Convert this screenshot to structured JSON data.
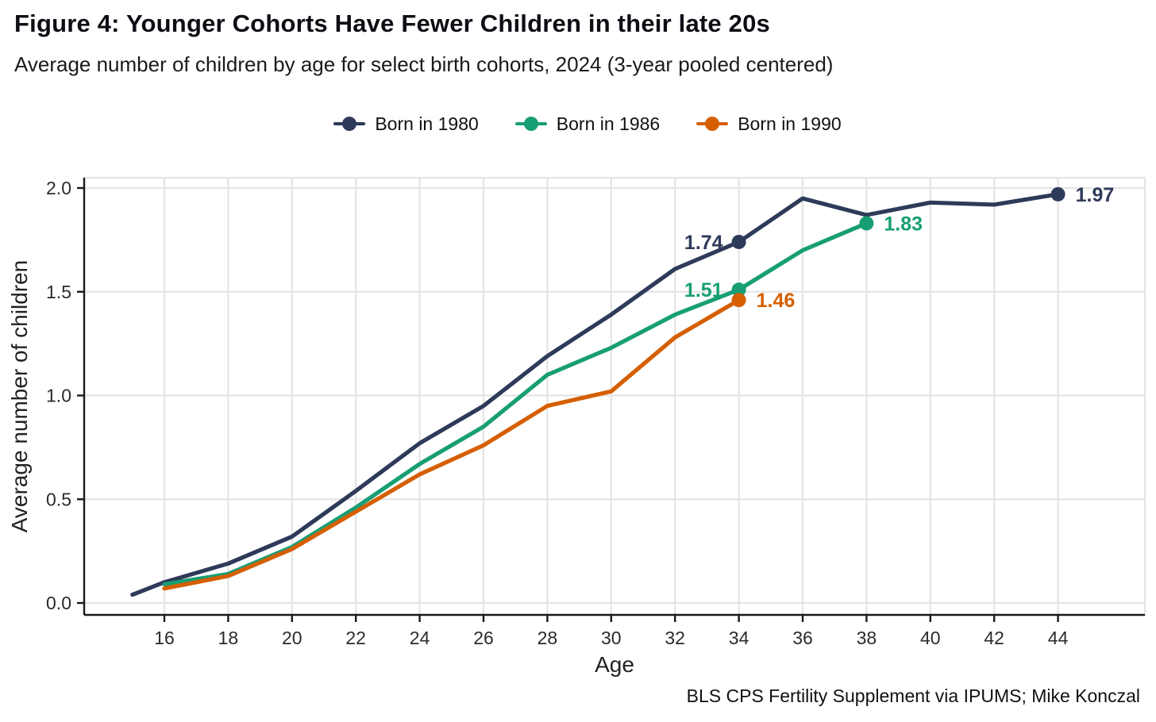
{
  "header": {
    "title": "Figure 4: Younger Cohorts Have Fewer Children in their late 20s",
    "subtitle": "Average number of children by age for select birth cohorts, 2024 (3-year pooled centered)"
  },
  "legend": [
    {
      "label": "Born in 1980",
      "color": "#2e3a59"
    },
    {
      "label": "Born in 1986",
      "color": "#189e74"
    },
    {
      "label": "Born in 1990",
      "color": "#d55f00"
    }
  ],
  "caption": "BLS CPS Fertility Supplement via IPUMS; Mike Konczal",
  "colors": {
    "grid": "#e4e4e4",
    "axis": "#1a1a1a",
    "tick_text": "#2b2b2b"
  },
  "chart_data": {
    "type": "line",
    "title": "Figure 4: Younger Cohorts Have Fewer Children in their late 20s",
    "subtitle": "Average number of children by age for select birth cohorts, 2024 (3-year pooled centered)",
    "xlabel": "Age",
    "ylabel": "Average number of children",
    "x_ticks": [
      16,
      18,
      20,
      22,
      24,
      26,
      28,
      30,
      32,
      34,
      36,
      38,
      40,
      42,
      44
    ],
    "y_ticks": [
      "0.0",
      "0.5",
      "1.0",
      "1.5",
      "2.0"
    ],
    "xlim": [
      13.5,
      46.7
    ],
    "ylim": [
      -0.06,
      2.05
    ],
    "grid": "major only, light gray",
    "legend_position": "top center",
    "series": [
      {
        "name": "Born in 1980",
        "color": "#2e3a59",
        "points": [
          [
            15,
            0.04
          ],
          [
            16,
            0.1
          ],
          [
            18,
            0.19
          ],
          [
            20,
            0.32
          ],
          [
            22,
            0.54
          ],
          [
            24,
            0.77
          ],
          [
            26,
            0.95
          ],
          [
            28,
            1.19
          ],
          [
            30,
            1.39
          ],
          [
            32,
            1.61
          ],
          [
            34,
            1.74
          ],
          [
            36,
            1.95
          ],
          [
            38,
            1.87
          ],
          [
            40,
            1.93
          ],
          [
            42,
            1.92
          ],
          [
            44,
            1.97
          ]
        ],
        "markers": [
          [
            34,
            1.74
          ],
          [
            44,
            1.97
          ]
        ],
        "labels": [
          {
            "x": 34,
            "y": 1.74,
            "text": "1.74",
            "anchor": "end",
            "dx": -20,
            "dy": 9
          },
          {
            "x": 44,
            "y": 1.97,
            "text": "1.97",
            "anchor": "start",
            "dx": 22,
            "dy": 9
          }
        ]
      },
      {
        "name": "Born in 1986",
        "color": "#189e74",
        "points": [
          [
            16,
            0.09
          ],
          [
            18,
            0.14
          ],
          [
            20,
            0.27
          ],
          [
            22,
            0.46
          ],
          [
            24,
            0.67
          ],
          [
            26,
            0.85
          ],
          [
            28,
            1.1
          ],
          [
            30,
            1.23
          ],
          [
            32,
            1.39
          ],
          [
            34,
            1.51
          ],
          [
            36,
            1.7
          ],
          [
            38,
            1.83
          ]
        ],
        "markers": [
          [
            34,
            1.51
          ],
          [
            38,
            1.83
          ]
        ],
        "labels": [
          {
            "x": 34,
            "y": 1.51,
            "text": "1.51",
            "anchor": "end",
            "dx": -20,
            "dy": 9
          },
          {
            "x": 38,
            "y": 1.83,
            "text": "1.83",
            "anchor": "start",
            "dx": 22,
            "dy": 9
          }
        ]
      },
      {
        "name": "Born in 1990",
        "color": "#d55f00",
        "points": [
          [
            16,
            0.07
          ],
          [
            18,
            0.13
          ],
          [
            20,
            0.26
          ],
          [
            22,
            0.44
          ],
          [
            24,
            0.62
          ],
          [
            26,
            0.76
          ],
          [
            28,
            0.95
          ],
          [
            30,
            1.02
          ],
          [
            32,
            1.28
          ],
          [
            34,
            1.46
          ]
        ],
        "markers": [
          [
            34,
            1.46
          ]
        ],
        "labels": [
          {
            "x": 34,
            "y": 1.46,
            "text": "1.46",
            "anchor": "start",
            "dx": 22,
            "dy": 9
          }
        ]
      }
    ]
  }
}
